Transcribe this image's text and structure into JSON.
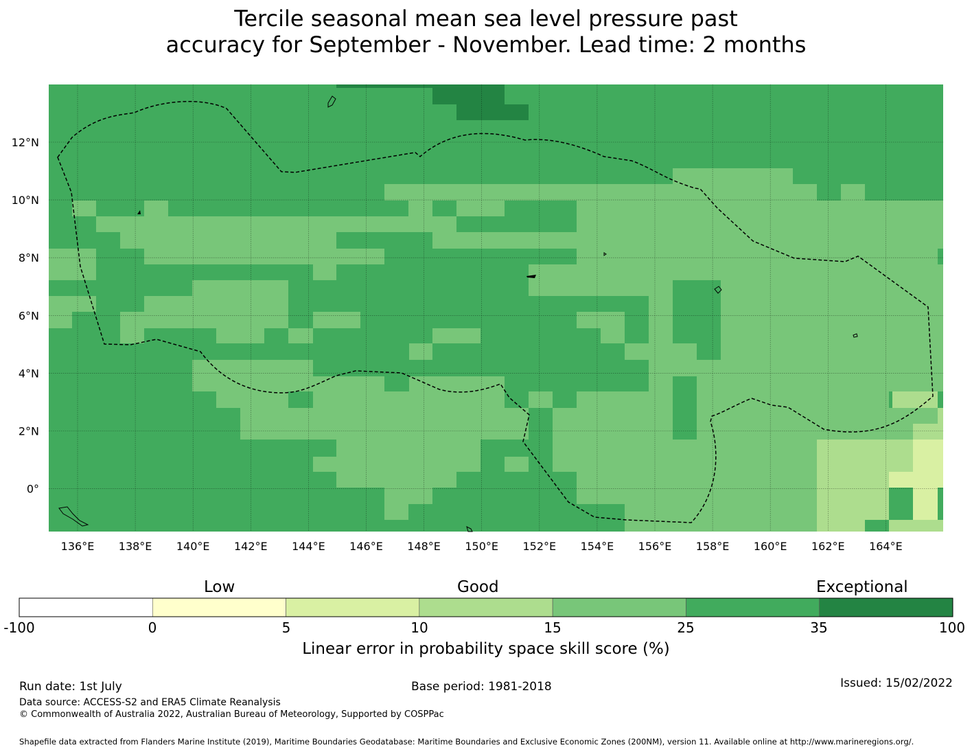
{
  "title": {
    "line1": "Tercile seasonal mean sea level pressure past",
    "line2": "accuracy for September - November. Lead time: 2 months"
  },
  "map": {
    "lat_labels": [
      "12°N",
      "10°N",
      "8°N",
      "6°N",
      "4°N",
      "2°N",
      "0°"
    ],
    "lon_labels": [
      "136°E",
      "138°E",
      "140°E",
      "142°E",
      "144°E",
      "146°E",
      "148°E",
      "150°E",
      "152°E",
      "154°E",
      "156°E",
      "158°E",
      "160°E",
      "162°E",
      "164°E"
    ],
    "region_outline": "dashed-eez-boundary",
    "gridlines": true
  },
  "colorbar": {
    "categories": [
      "Low",
      "Good",
      "Exceptional"
    ],
    "ticks": [
      "-100",
      "0",
      "5",
      "10",
      "15",
      "25",
      "35",
      "100"
    ],
    "colors": [
      "#ffffff",
      "#ffffcc",
      "#d9f0a3",
      "#addd8e",
      "#78c679",
      "#41ab5d",
      "#238443"
    ],
    "label": "Linear error in probability space skill score (%)"
  },
  "footer": {
    "run_date": "Run date: 1st July",
    "base_period": "Base period: 1981-2018",
    "issued": "Issued: 15/02/2022",
    "data_source": "Data source: ACCESS-S2 and ERA5 Climate Reanalysis",
    "copyright": "© Commonwealth of Australia 2022, Australian Bureau of Meteorology, Supported by COSPPac",
    "shapefile": "Shapefile data extracted from Flanders Marine Institute (2019), Maritime Boundaries Geodatabase: Maritime Boundaries and Exclusive Economic Zones (200NM), version 11. Available online at http://www.marineregions.org/."
  }
}
